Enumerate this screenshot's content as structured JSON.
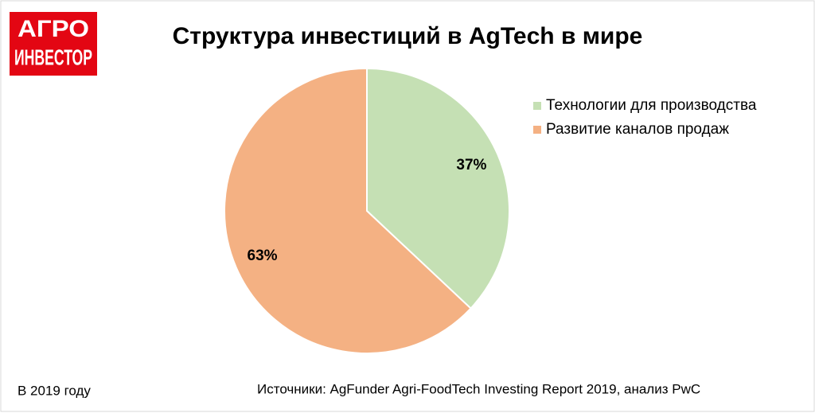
{
  "logo": {
    "line1": "АГРО",
    "line2": "ИНВЕСТОР"
  },
  "chart_data": {
    "type": "pie",
    "title": "Структура инвестиций в AgTech в мире",
    "categories": [
      "Технологии для производства",
      "Развитие каналов продаж"
    ],
    "values": [
      37,
      63
    ],
    "value_labels": [
      "37%",
      "63%"
    ],
    "colors": [
      "#c5e0b4",
      "#f4b183"
    ],
    "note": "В 2019 году",
    "source": "Источники: AgFunder Agri-FoodTech Investing Report 2019, анализ PwC"
  }
}
